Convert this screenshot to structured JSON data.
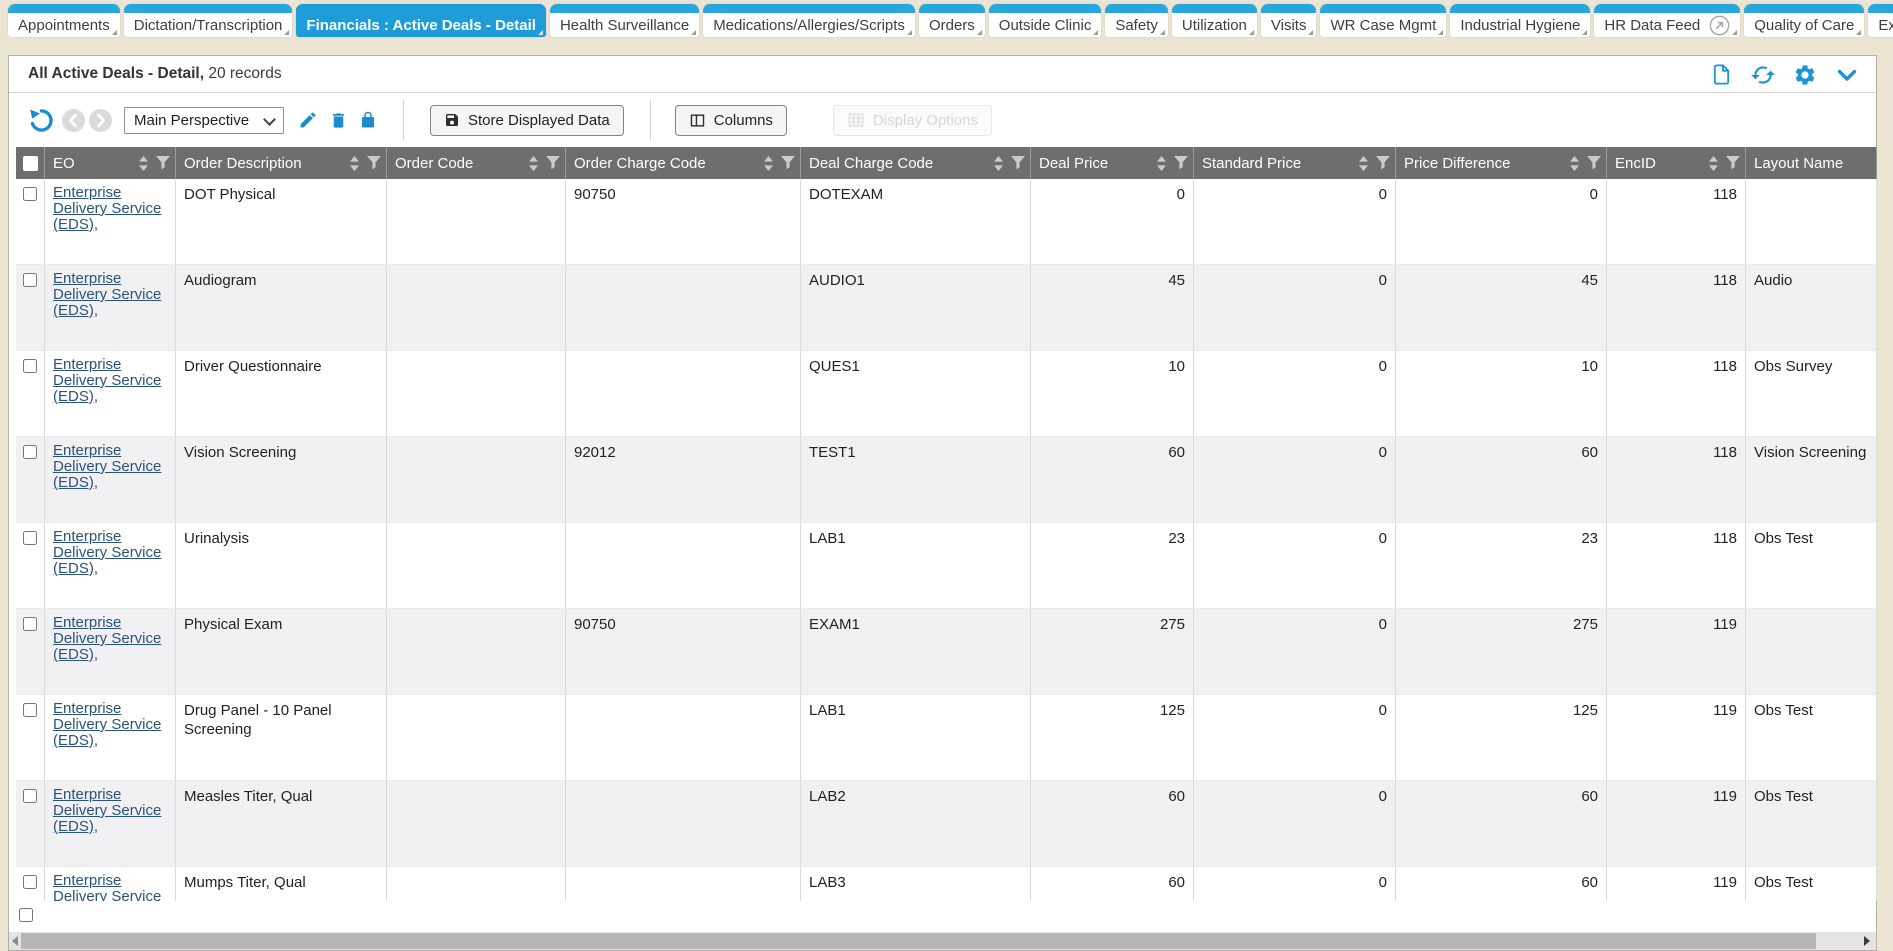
{
  "tabs": [
    {
      "label": "Appointments"
    },
    {
      "label": "Dictation/Transcription"
    },
    {
      "label": "Financials : Active Deals - Detail",
      "active": true
    },
    {
      "label": "Health Surveillance"
    },
    {
      "label": "Medications/Allergies/Scripts"
    },
    {
      "label": "Orders"
    },
    {
      "label": "Outside Clinic"
    },
    {
      "label": "Safety"
    },
    {
      "label": "Utilization"
    },
    {
      "label": "Visits"
    },
    {
      "label": "WR Case Mgmt"
    },
    {
      "label": "Industrial Hygiene"
    },
    {
      "label": "HR Data Feed",
      "external_icon": true
    },
    {
      "label": "Quality of Care"
    },
    {
      "label": "Executive"
    }
  ],
  "panel": {
    "title": "All Active Deals - Detail,",
    "record_count": "20 records",
    "header_icons": [
      "new-document-icon",
      "refresh-icon",
      "gear-icon",
      "collapse-chevron-icon"
    ]
  },
  "toolbar": {
    "icons": [
      "undo-icon",
      "back-icon",
      "forward-icon",
      "edit-pencil-icon",
      "delete-trash-icon",
      "lock-icon"
    ],
    "perspective_select": {
      "value": "Main Perspective"
    },
    "store_button": "Store Displayed Data",
    "columns_button": "Columns",
    "display_options_button": "Display Options"
  },
  "table": {
    "columns": [
      "EO",
      "Order Description",
      "Order Code",
      "Order Charge Code",
      "Deal Charge Code",
      "Deal Price",
      "Standard Price",
      "Price Difference",
      "EncID",
      "Layout Name"
    ],
    "rows": [
      {
        "eo": "Enterprise Delivery Service (EDS),",
        "order_description": "DOT Physical",
        "order_code": "",
        "order_charge_code": "90750",
        "deal_charge_code": "DOTEXAM",
        "deal_price": "0",
        "standard_price": "0",
        "price_difference": "0",
        "enc_id": "118",
        "layout_name": ""
      },
      {
        "eo": "Enterprise Delivery Service (EDS),",
        "order_description": "Audiogram",
        "order_code": "",
        "order_charge_code": "",
        "deal_charge_code": "AUDIO1",
        "deal_price": "45",
        "standard_price": "0",
        "price_difference": "45",
        "enc_id": "118",
        "layout_name": "Audio"
      },
      {
        "eo": "Enterprise Delivery Service (EDS),",
        "order_description": "Driver Questionnaire",
        "order_code": "",
        "order_charge_code": "",
        "deal_charge_code": "QUES1",
        "deal_price": "10",
        "standard_price": "0",
        "price_difference": "10",
        "enc_id": "118",
        "layout_name": "Obs Survey"
      },
      {
        "eo": "Enterprise Delivery Service (EDS),",
        "order_description": "Vision Screening",
        "order_code": "",
        "order_charge_code": "92012",
        "deal_charge_code": "TEST1",
        "deal_price": "60",
        "standard_price": "0",
        "price_difference": "60",
        "enc_id": "118",
        "layout_name": "Vision Screening"
      },
      {
        "eo": "Enterprise Delivery Service (EDS),",
        "order_description": "Urinalysis",
        "order_code": "",
        "order_charge_code": "",
        "deal_charge_code": "LAB1",
        "deal_price": "23",
        "standard_price": "0",
        "price_difference": "23",
        "enc_id": "118",
        "layout_name": "Obs Test"
      },
      {
        "eo": "Enterprise Delivery Service (EDS),",
        "order_description": "Physical Exam",
        "order_code": "",
        "order_charge_code": "90750",
        "deal_charge_code": "EXAM1",
        "deal_price": "275",
        "standard_price": "0",
        "price_difference": "275",
        "enc_id": "119",
        "layout_name": ""
      },
      {
        "eo": "Enterprise Delivery Service (EDS),",
        "order_description": "Drug Panel - 10 Panel Screening",
        "order_code": "",
        "order_charge_code": "",
        "deal_charge_code": "LAB1",
        "deal_price": "125",
        "standard_price": "0",
        "price_difference": "125",
        "enc_id": "119",
        "layout_name": "Obs Test"
      },
      {
        "eo": "Enterprise Delivery Service (EDS),",
        "order_description": "Measles Titer, Qual",
        "order_code": "",
        "order_charge_code": "",
        "deal_charge_code": "LAB2",
        "deal_price": "60",
        "standard_price": "0",
        "price_difference": "60",
        "enc_id": "119",
        "layout_name": "Obs Test"
      },
      {
        "eo": "Enterprise Delivery Service (EDS),",
        "order_description": "Mumps Titer, Qual",
        "order_code": "",
        "order_charge_code": "",
        "deal_charge_code": "LAB3",
        "deal_price": "60",
        "standard_price": "0",
        "price_difference": "60",
        "enc_id": "119",
        "layout_name": "Obs Test"
      }
    ]
  },
  "colors": {
    "page_background": "#ebe4d3",
    "accent_blue": "#1e9cd8",
    "tab_band": "#29a7dc",
    "icon_blue": "#1d8cca",
    "header_gray": "#6e6e6e",
    "link_blue": "#2b527a",
    "alt_row": "#f1f1f3"
  }
}
